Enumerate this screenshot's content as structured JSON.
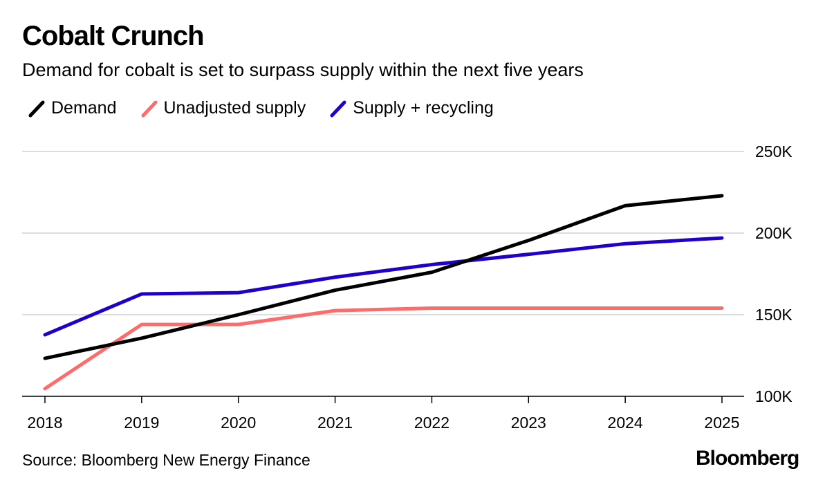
{
  "chart_data": {
    "type": "line",
    "title": "Cobalt Crunch",
    "subtitle": "Demand for cobalt is set to surpass supply within the next five years",
    "xlabel": "",
    "ylabel": "",
    "x": [
      "2018",
      "2019",
      "2020",
      "2021",
      "2022",
      "2023",
      "2024",
      "2025"
    ],
    "ylim": [
      100000,
      250000
    ],
    "yticks": [
      100000,
      150000,
      200000,
      250000
    ],
    "ytick_labels": [
      "100K",
      "150K",
      "200K",
      "250K"
    ],
    "grid": true,
    "legend_position": "top-left",
    "series": [
      {
        "name": "Demand",
        "color": "#000000",
        "values": [
          123300,
          135600,
          150000,
          165000,
          176000,
          195500,
          216800,
          222900
        ]
      },
      {
        "name": "Unadjusted supply",
        "color": "#ff6b6b",
        "values": [
          104700,
          144000,
          144000,
          152500,
          154000,
          154000,
          154000,
          154000
        ]
      },
      {
        "name": "Supply + recycling",
        "color": "#2200cc",
        "values": [
          137700,
          162700,
          163500,
          173000,
          180700,
          187000,
          193500,
          197000
        ]
      }
    ],
    "source": "Source: Bloomberg New Energy Finance",
    "brand": "Bloomberg"
  }
}
